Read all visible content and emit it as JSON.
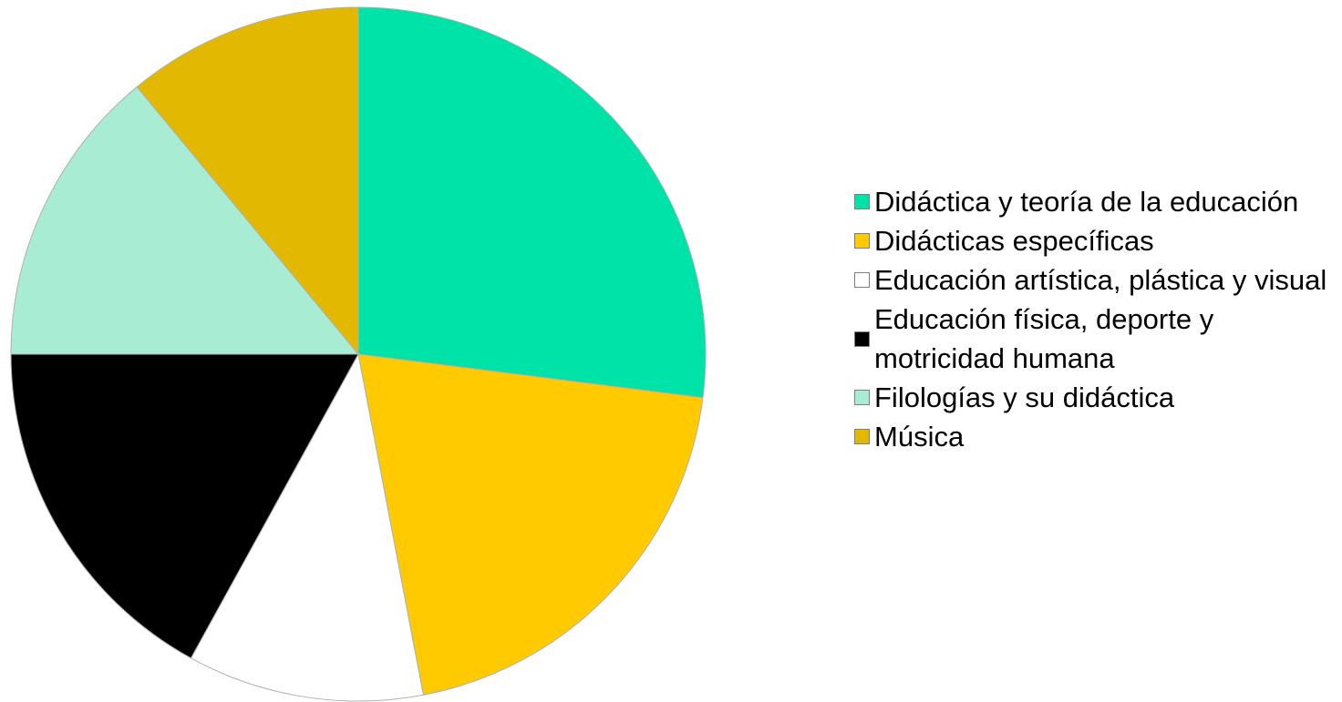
{
  "chart_data": {
    "type": "pie",
    "title": "",
    "start_angle_deg": 0,
    "direction": "clockwise",
    "legend_position": "right",
    "series": [
      {
        "name": "Didáctica y teoría de la educación",
        "value": 27,
        "color": "#00e3a8"
      },
      {
        "name": "Didácticas específicas",
        "value": 20,
        "color": "#ffcb00"
      },
      {
        "name": "Educación artística, plástica y visual",
        "value": 11,
        "color": "#ffffff"
      },
      {
        "name": "Educación física, deporte y motricidad humana",
        "value": 17,
        "color": "#000000"
      },
      {
        "name": "Filologías y su didáctica",
        "value": 14,
        "color": "#a8edd3"
      },
      {
        "name": "Música",
        "value": 11,
        "color": "#e3b800"
      }
    ]
  }
}
